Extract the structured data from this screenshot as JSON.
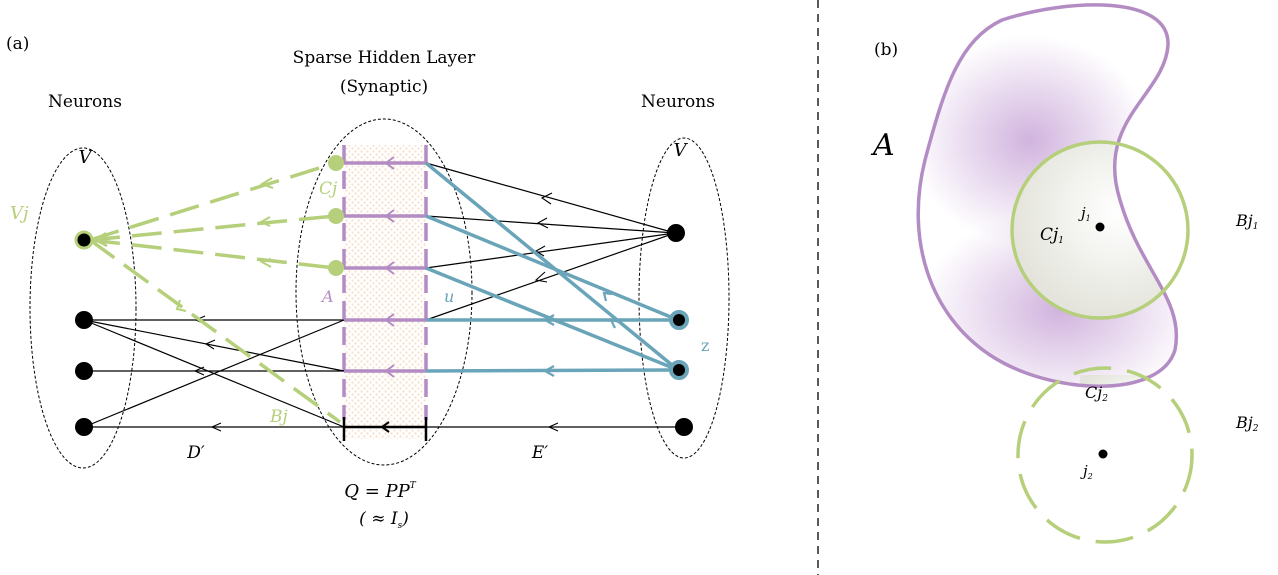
{
  "colors": {
    "green": "#b5cf7a",
    "purple": "#b48cc4",
    "blue": "#6aa4b8",
    "purple_fill": "#dcc5e6",
    "hatch": "#f4d9c4"
  },
  "panel_a": {
    "label": "(a)",
    "hidden_title": "Sparse Hidden Layer",
    "hidden_subtitle": "(Synaptic)",
    "left_title": "Neurons",
    "right_title": "Neurons",
    "left_set": "V",
    "right_set": "V",
    "vj": "Vj",
    "cj": "Cj",
    "a": "A",
    "u": "u",
    "z": "z",
    "bj": "Bj",
    "d_prime": "D′",
    "e_prime": "E′",
    "q_eq": "Q = PP",
    "q_sup": "T",
    "approx": "( ≈ I",
    "approx_sub": "s",
    "approx_close": ")"
  },
  "panel_b": {
    "label": "(b)",
    "a": "A",
    "j1": "j",
    "j1_sub": "1",
    "cj1": "Cj",
    "cj1_sub": "1",
    "bj1": "Bj",
    "bj1_sub": "1",
    "cj2": "Cj",
    "cj2_sub": "2",
    "j2": "j",
    "j2_sub": "2",
    "bj2": "Bj",
    "bj2_sub": "2"
  }
}
